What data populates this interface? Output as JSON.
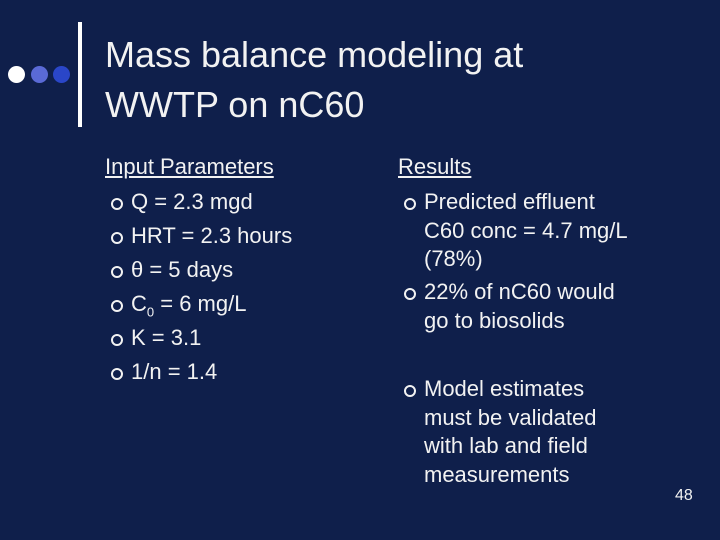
{
  "title": {
    "lines": [
      "Mass balance modeling at",
      "WWTP on nC60"
    ]
  },
  "left": {
    "heading": "Input Parameters",
    "items": [
      "Q = 2.3 mgd",
      "HRT = 2.3 hours",
      "θ = 5 days",
      {
        "base": "C",
        "sub": "0",
        "rest": " = 6 mg/L"
      },
      "K = 3.1",
      "1/n = 1.4"
    ]
  },
  "right": {
    "heading": "Results",
    "items": [
      [
        "Predicted effluent",
        "C60 conc = 4.7 mg/L",
        "(78%)"
      ],
      [
        "22% of nC60 would",
        "go to biosolids"
      ],
      [
        "Model estimates",
        "must be validated",
        "with lab and field",
        "measurements"
      ]
    ]
  },
  "page_number": "48"
}
